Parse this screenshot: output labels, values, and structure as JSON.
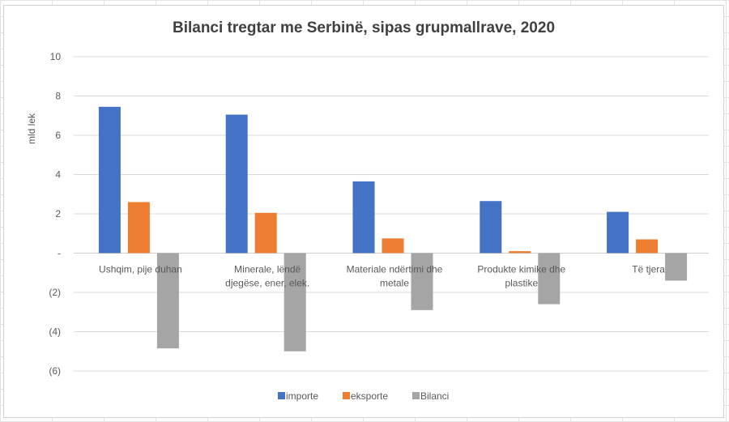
{
  "chart_data": {
    "type": "bar",
    "title": "Bilanci tregtar me Serbinë, sipas grupmallrave, 2020",
    "ylabel": "mld lek",
    "xlabel": "",
    "ylim": [
      -6,
      10
    ],
    "yticks": [
      10,
      8,
      6,
      4,
      2,
      0,
      -2,
      -4,
      -6
    ],
    "ytick_labels": [
      "10",
      "8",
      "6",
      "4",
      "2",
      "-",
      "(2)",
      "(4)",
      "(6)"
    ],
    "categories": [
      [
        "Ushqim, pije duhan"
      ],
      [
        "Minerale, lëndë",
        "djegëse, ener, elek."
      ],
      [
        "Materiale ndërtimi dhe",
        "metale"
      ],
      [
        "Produkte kimike dhe",
        "plastike"
      ],
      [
        "Të tjera"
      ]
    ],
    "series": [
      {
        "name": "importe",
        "color": "#4472c4",
        "values": [
          7.45,
          7.05,
          3.65,
          2.65,
          2.1
        ]
      },
      {
        "name": "eksporte",
        "color": "#ed7d31",
        "values": [
          2.6,
          2.05,
          0.75,
          0.1,
          0.7
        ]
      },
      {
        "name": "Bilanci",
        "color": "#a5a5a5",
        "values": [
          -4.85,
          -5.0,
          -2.9,
          -2.6,
          -1.4
        ]
      }
    ],
    "grid": true,
    "legend_position": "bottom"
  }
}
